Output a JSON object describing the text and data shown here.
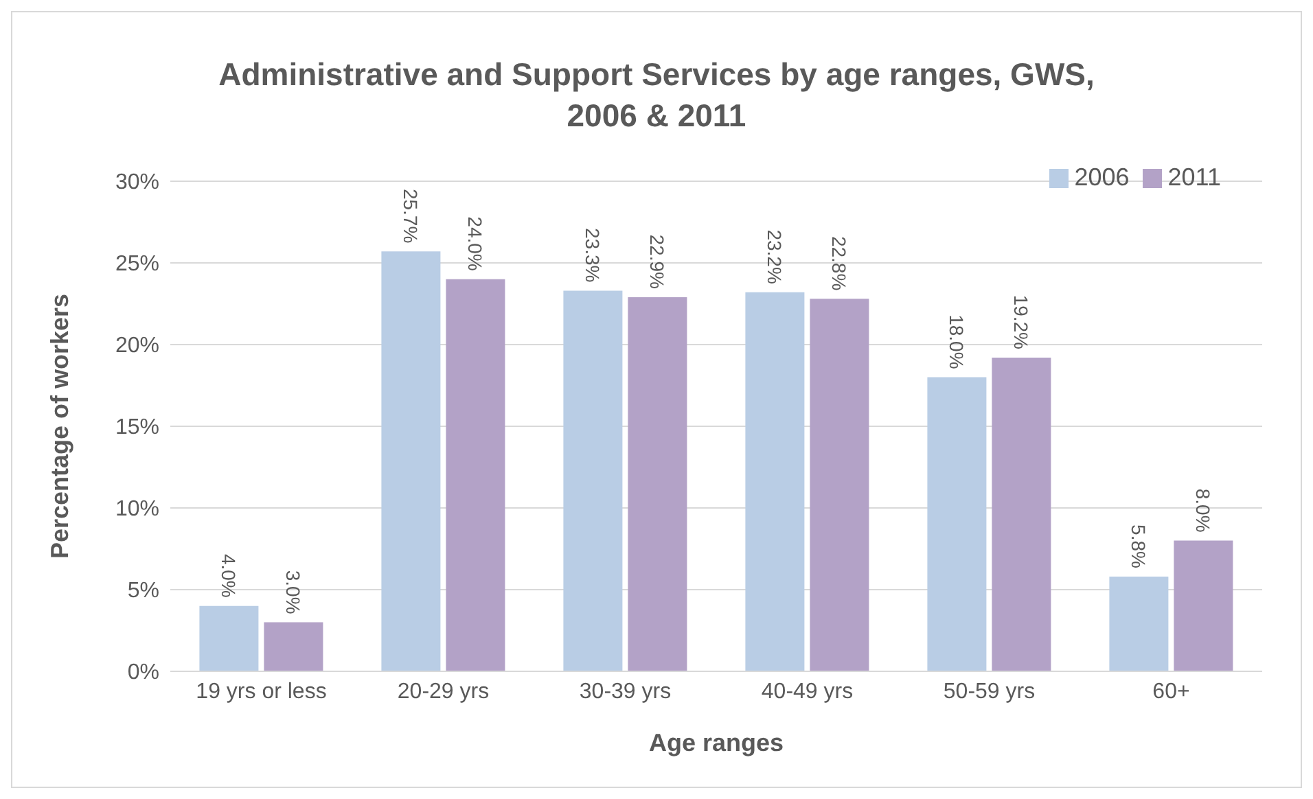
{
  "chart_data": {
    "type": "bar",
    "title": "Administrative and Support Services by age ranges, GWS, 2006 & 2011",
    "xlabel": "Age ranges",
    "ylabel": "Percentage of workers",
    "categories": [
      "19 yrs or less",
      "20-29 yrs",
      "30-39 yrs",
      "40-49 yrs",
      "50-59 yrs",
      "60+"
    ],
    "series": [
      {
        "name": "2006",
        "color": "#b9cde5",
        "values": [
          4.0,
          25.7,
          23.3,
          23.2,
          18.0,
          5.8
        ],
        "value_labels": [
          "4.0%",
          "25.7%",
          "23.3%",
          "23.2%",
          "18.0%",
          "5.8%"
        ]
      },
      {
        "name": "2011",
        "color": "#b3a2c7",
        "values": [
          3.0,
          24.0,
          22.9,
          22.8,
          19.2,
          8.0
        ],
        "value_labels": [
          "3.0%",
          "24.0%",
          "22.9%",
          "22.8%",
          "19.2%",
          "8.0%"
        ]
      }
    ],
    "ylim": [
      0,
      30
    ],
    "yticks": [
      {
        "value": 0,
        "label": "0%"
      },
      {
        "value": 5,
        "label": "5%"
      },
      {
        "value": 10,
        "label": "10%"
      },
      {
        "value": 15,
        "label": "15%"
      },
      {
        "value": 20,
        "label": "20%"
      },
      {
        "value": 25,
        "label": "25%"
      },
      {
        "value": 30,
        "label": "30%"
      }
    ],
    "grid": "y",
    "legend": "top right"
  }
}
